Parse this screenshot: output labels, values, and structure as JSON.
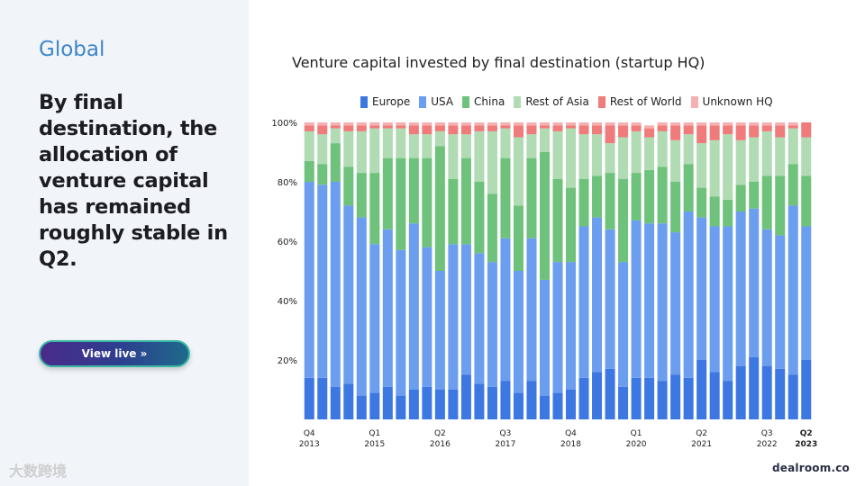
{
  "section": "Global",
  "headline": "By final destination, the allocation of venture capital has remained roughly stable in Q2.",
  "cta_label": "View live »",
  "brand": "dealroom.co",
  "watermark": "大数跨境",
  "colors": {
    "Europe": "#3d78e2",
    "USA": "#6c9ef0",
    "China": "#6fc27c",
    "Rest of Asia": "#b0dbb3",
    "Rest of World": "#ef7b7b",
    "Unknown HQ": "#f5b1b1"
  },
  "chart_data": {
    "type": "bar",
    "stacked": true,
    "title": "Venture capital invested by final destination (startup HQ)",
    "xlabel": "",
    "ylabel": "",
    "ylim": [
      0,
      100
    ],
    "yticks": [
      "20%",
      "40%",
      "60%",
      "80%",
      "100%"
    ],
    "ytick_values": [
      20,
      40,
      60,
      80,
      100
    ],
    "xtick_labels": [
      {
        "index": 0,
        "q": "Q4",
        "year": "2013"
      },
      {
        "index": 5,
        "q": "Q1",
        "year": "2015"
      },
      {
        "index": 10,
        "q": "Q2",
        "year": "2016"
      },
      {
        "index": 15,
        "q": "Q3",
        "year": "2017"
      },
      {
        "index": 20,
        "q": "Q4",
        "year": "2018"
      },
      {
        "index": 25,
        "q": "Q1",
        "year": "2020"
      },
      {
        "index": 30,
        "q": "Q2",
        "year": "2021"
      },
      {
        "index": 35,
        "q": "Q3",
        "year": "2022"
      },
      {
        "index": 38,
        "q": "Q2",
        "year": "2023",
        "bold": true
      }
    ],
    "legend_position": "top",
    "categories": [
      "Q4 2013",
      "Q1 2014",
      "Q2 2014",
      "Q3 2014",
      "Q4 2014",
      "Q1 2015",
      "Q2 2015",
      "Q3 2015",
      "Q4 2015",
      "Q1 2016",
      "Q2 2016",
      "Q3 2016",
      "Q4 2016",
      "Q1 2017",
      "Q2 2017",
      "Q3 2017",
      "Q4 2017",
      "Q1 2018",
      "Q2 2018",
      "Q3 2018",
      "Q4 2018",
      "Q1 2019",
      "Q2 2019",
      "Q3 2019",
      "Q4 2019",
      "Q1 2020",
      "Q2 2020",
      "Q3 2020",
      "Q4 2020",
      "Q1 2021",
      "Q2 2021",
      "Q3 2021",
      "Q4 2021",
      "Q1 2022",
      "Q2 2022",
      "Q3 2022",
      "Q4 2022",
      "Q1 2023",
      "Q2 2023"
    ],
    "series": [
      {
        "name": "Europe",
        "values": [
          14,
          14,
          11,
          12,
          8,
          9,
          11,
          8,
          10,
          11,
          10,
          10,
          15,
          12,
          11,
          13,
          9,
          13,
          8,
          9,
          10,
          14,
          16,
          17,
          11,
          14,
          14,
          13,
          15,
          14,
          20,
          16,
          13,
          18,
          21,
          18,
          17,
          15,
          20
        ]
      },
      {
        "name": "USA",
        "values": [
          66,
          65,
          69,
          60,
          60,
          50,
          53,
          49,
          56,
          47,
          40,
          49,
          44,
          44,
          42,
          48,
          41,
          48,
          39,
          44,
          43,
          51,
          52,
          47,
          42,
          53,
          52,
          53,
          48,
          56,
          48,
          49,
          52,
          52,
          50,
          46,
          45,
          57,
          45
        ]
      },
      {
        "name": "China",
        "values": [
          7,
          7,
          13,
          13,
          15,
          24,
          24,
          31,
          22,
          30,
          42,
          22,
          29,
          24,
          23,
          27,
          22,
          27,
          43,
          28,
          25,
          16,
          14,
          19,
          28,
          16,
          18,
          19,
          17,
          16,
          10,
          10,
          9,
          9,
          9,
          18,
          20,
          14,
          17
        ]
      },
      {
        "name": "Rest of Asia",
        "values": [
          10,
          10,
          5,
          12,
          14,
          15,
          10,
          10,
          8,
          8,
          5,
          15,
          8,
          17,
          21,
          10,
          23,
          8,
          8,
          16,
          20,
          15,
          14,
          10,
          14,
          14,
          11,
          12,
          14,
          10,
          15,
          19,
          22,
          15,
          15,
          15,
          13,
          12,
          13
        ]
      },
      {
        "name": "Rest of World",
        "values": [
          2,
          3,
          1,
          2,
          2,
          1,
          1,
          1,
          3,
          3,
          2,
          3,
          3,
          2,
          2,
          1,
          4,
          3,
          1,
          2,
          1,
          3,
          3,
          6,
          4,
          2,
          3,
          2,
          5,
          3,
          6,
          5,
          3,
          5,
          4,
          2,
          4,
          1,
          5
        ]
      },
      {
        "name": "Unknown HQ",
        "values": [
          1,
          1,
          1,
          1,
          1,
          1,
          1,
          1,
          1,
          1,
          1,
          1,
          1,
          1,
          1,
          1,
          1,
          1,
          1,
          1,
          1,
          1,
          1,
          1,
          1,
          1,
          1,
          1,
          1,
          1,
          1,
          1,
          1,
          1,
          1,
          1,
          1,
          1,
          0
        ]
      }
    ]
  }
}
